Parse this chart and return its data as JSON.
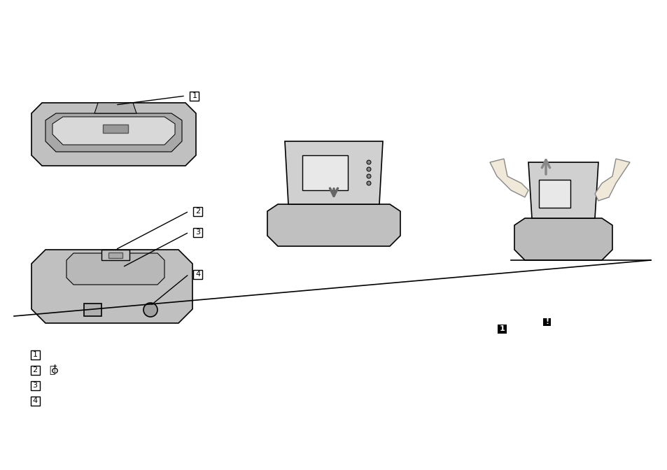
{
  "bg_color": "#ffffff",
  "fig_width": 9.54,
  "fig_height": 6.72,
  "dpi": 100,
  "label_boxes": [
    "1",
    "2",
    "3",
    "4"
  ],
  "legend_labels": [
    "1",
    "2",
    "3",
    "4"
  ],
  "usb_symbol": "✓",
  "black_box_labels": [
    "1",
    "!"
  ]
}
